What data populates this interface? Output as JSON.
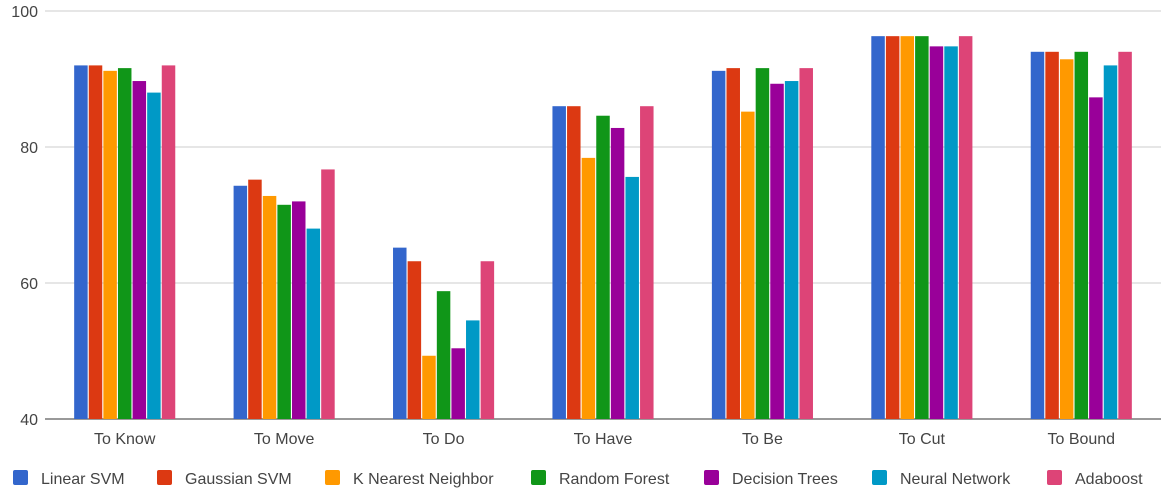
{
  "chart_data": {
    "type": "bar",
    "categories": [
      "To Know",
      "To Move",
      "To Do",
      "To Have",
      "To Be",
      "To Cut",
      "To Bound"
    ],
    "series": [
      {
        "name": "Linear SVM",
        "color": "#3366cc",
        "values": [
          92.0,
          74.3,
          65.2,
          86.0,
          91.2,
          96.3,
          94.0
        ]
      },
      {
        "name": "Gaussian SVM",
        "color": "#dc3912",
        "values": [
          92.0,
          75.2,
          63.2,
          86.0,
          91.6,
          96.3,
          94.0
        ]
      },
      {
        "name": "K Nearest Neighbor",
        "color": "#ff9900",
        "values": [
          91.2,
          72.8,
          49.3,
          78.4,
          85.2,
          96.3,
          92.9
        ]
      },
      {
        "name": "Random Forest",
        "color": "#109618",
        "values": [
          91.6,
          71.5,
          58.8,
          84.6,
          91.6,
          96.3,
          94.0
        ]
      },
      {
        "name": "Decision Trees",
        "color": "#990099",
        "values": [
          89.7,
          72.0,
          50.4,
          82.8,
          89.3,
          94.8,
          87.3
        ]
      },
      {
        "name": "Neural Network",
        "color": "#0099c6",
        "values": [
          88.0,
          68.0,
          54.5,
          75.6,
          89.7,
          94.8,
          92.0
        ]
      },
      {
        "name": "Adaboost",
        "color": "#dd4477",
        "values": [
          92.0,
          76.7,
          63.2,
          86.0,
          91.6,
          96.3,
          94.0
        ]
      }
    ],
    "yticks": [
      "40",
      "60",
      "80",
      "100"
    ],
    "ylim": [
      40,
      100
    ],
    "grid": true,
    "legend": "bottom"
  }
}
